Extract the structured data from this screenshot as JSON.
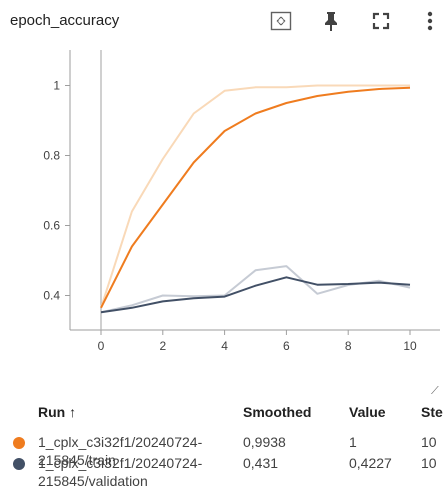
{
  "card": {
    "title": "epoch_accuracy"
  },
  "toolbar": {
    "icons": [
      "fit-domain-icon",
      "pin-icon",
      "fullscreen-icon",
      "more-vert-icon"
    ]
  },
  "chart_data": {
    "type": "line",
    "title": "",
    "xlabel": "",
    "ylabel": "",
    "xlim": [
      0,
      10
    ],
    "ylim": [
      0.32,
      1.04
    ],
    "xticks": [
      0,
      2,
      4,
      6,
      8,
      10
    ],
    "yticks": [
      0.4,
      0.6,
      0.8,
      1
    ],
    "ytick_labels": [
      "0.4",
      "0.6",
      "0.8",
      "1"
    ],
    "grid": false,
    "x": [
      0,
      1,
      2,
      3,
      4,
      5,
      6,
      7,
      8,
      9,
      10
    ],
    "series": [
      {
        "name": "1_cplx_c3i32f1/20240724-215845/train",
        "color": "#ef7c1f",
        "raw_color": "#f9d9b8",
        "smoothed": [
          0.365,
          0.54,
          0.66,
          0.78,
          0.87,
          0.92,
          0.95,
          0.97,
          0.982,
          0.99,
          0.9938
        ],
        "raw": [
          0.365,
          0.64,
          0.79,
          0.92,
          0.985,
          0.995,
          0.995,
          1.0,
          1.0,
          1.0,
          1.0
        ]
      },
      {
        "name": "1_cplx_c3i32f1/20240724-215845/validation",
        "color": "#425066",
        "raw_color": "#c6cbd4",
        "smoothed": [
          0.352,
          0.365,
          0.383,
          0.392,
          0.397,
          0.428,
          0.452,
          0.431,
          0.433,
          0.437,
          0.431
        ],
        "raw": [
          0.352,
          0.372,
          0.4,
          0.398,
          0.4,
          0.472,
          0.484,
          0.405,
          0.43,
          0.442,
          0.4227
        ]
      }
    ]
  },
  "table": {
    "headers": {
      "run": "Run ↑",
      "smoothed": "Smoothed",
      "value": "Value",
      "step": "Ste"
    },
    "rows": [
      {
        "run_line1": "1_cplx_c3i32f1/20240724-",
        "run_line2": "215845/train",
        "smoothed": "0,9938",
        "value": "1",
        "step": "10",
        "color": "#ef7c1f"
      },
      {
        "run_line1": "1_cplx_c3i32f1/20240724-",
        "run_line2": "215845/validation",
        "smoothed": "0,431",
        "value": "0,4227",
        "step": "10",
        "color": "#425066"
      }
    ]
  }
}
